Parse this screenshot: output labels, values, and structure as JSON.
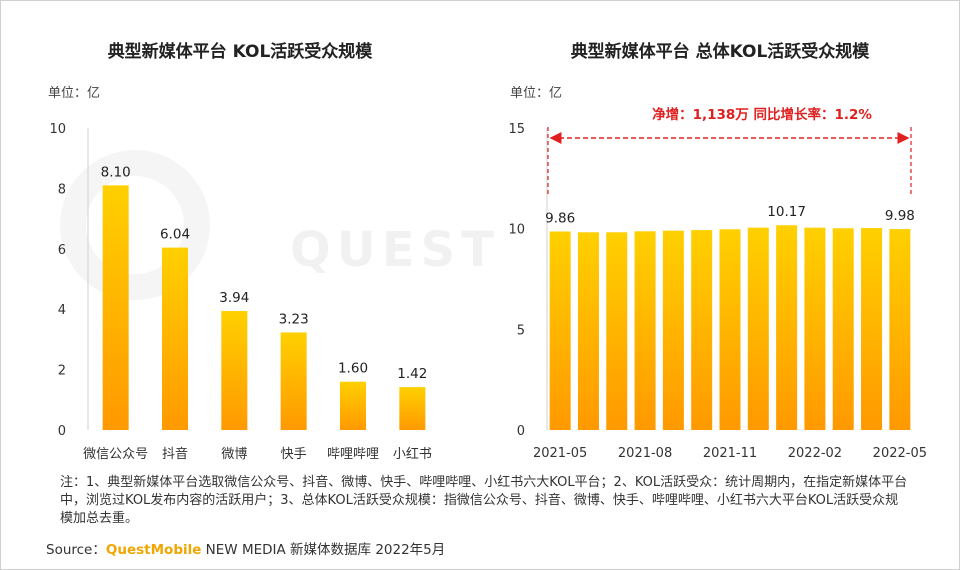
{
  "colors": {
    "bar_top": "#ffd000",
    "bar_bottom": "#ff9900",
    "annotation": "#e02020",
    "axis": "#d0d0d0"
  },
  "watermark": "QUEST",
  "chart_data": [
    {
      "type": "bar",
      "title": "典型新媒体平台 KOL活跃受众规模",
      "unit": "单位：亿",
      "categories": [
        "微信公众号",
        "抖音",
        "微博",
        "快手",
        "哔哩哔哩",
        "小红书"
      ],
      "values": [
        8.1,
        6.04,
        3.94,
        3.23,
        1.6,
        1.42
      ],
      "value_labels": [
        "8.10",
        "6.04",
        "3.94",
        "3.23",
        "1.60",
        "1.42"
      ],
      "ylim": [
        0,
        10
      ],
      "yticks": [
        "0",
        "2",
        "4",
        "6",
        "8",
        "10"
      ],
      "grid": false
    },
    {
      "type": "bar",
      "title": "典型新媒体平台 总体KOL活跃受众规模",
      "unit": "单位：亿",
      "categories": [
        "2021-05",
        "2021-06",
        "2021-07",
        "2021-08",
        "2021-09",
        "2021-10",
        "2021-11",
        "2021-12",
        "2022-01",
        "2022-02",
        "2022-03",
        "2022-04",
        "2022-05"
      ],
      "values": [
        9.86,
        9.82,
        9.82,
        9.87,
        9.9,
        9.93,
        9.97,
        10.05,
        10.17,
        10.05,
        10.02,
        10.03,
        9.98
      ],
      "value_labels": [
        "9.86",
        "",
        "",
        "",
        "",
        "",
        "",
        "",
        "10.17",
        "",
        "",
        "",
        "9.98"
      ],
      "xtick_labels": [
        "2021-05",
        "2021-08",
        "2021-11",
        "2022-02",
        "2022-05"
      ],
      "ylim": [
        0,
        15
      ],
      "yticks": [
        "0",
        "5",
        "10",
        "15"
      ],
      "annotation": "净增：1,138万   同比增长率：1.2%",
      "grid": false
    }
  ],
  "note": "注：1、典型新媒体平台选取微信公众号、抖音、微博、快手、哔哩哔哩、小红书六大KOL平台；2、KOL活跃受众：统计周期内，在指定新媒体平台中，浏览过KOL发布内容的活跃用户；3、总体KOL活跃受众规模：指微信公众号、抖音、微博、快手、哔哩哔哩、小红书六大平台KOL活跃受众规模加总去重。",
  "source": {
    "label": "Source：",
    "brand": "QuestMobile",
    "rest": " NEW MEDIA 新媒体数据库 2022年5月"
  }
}
